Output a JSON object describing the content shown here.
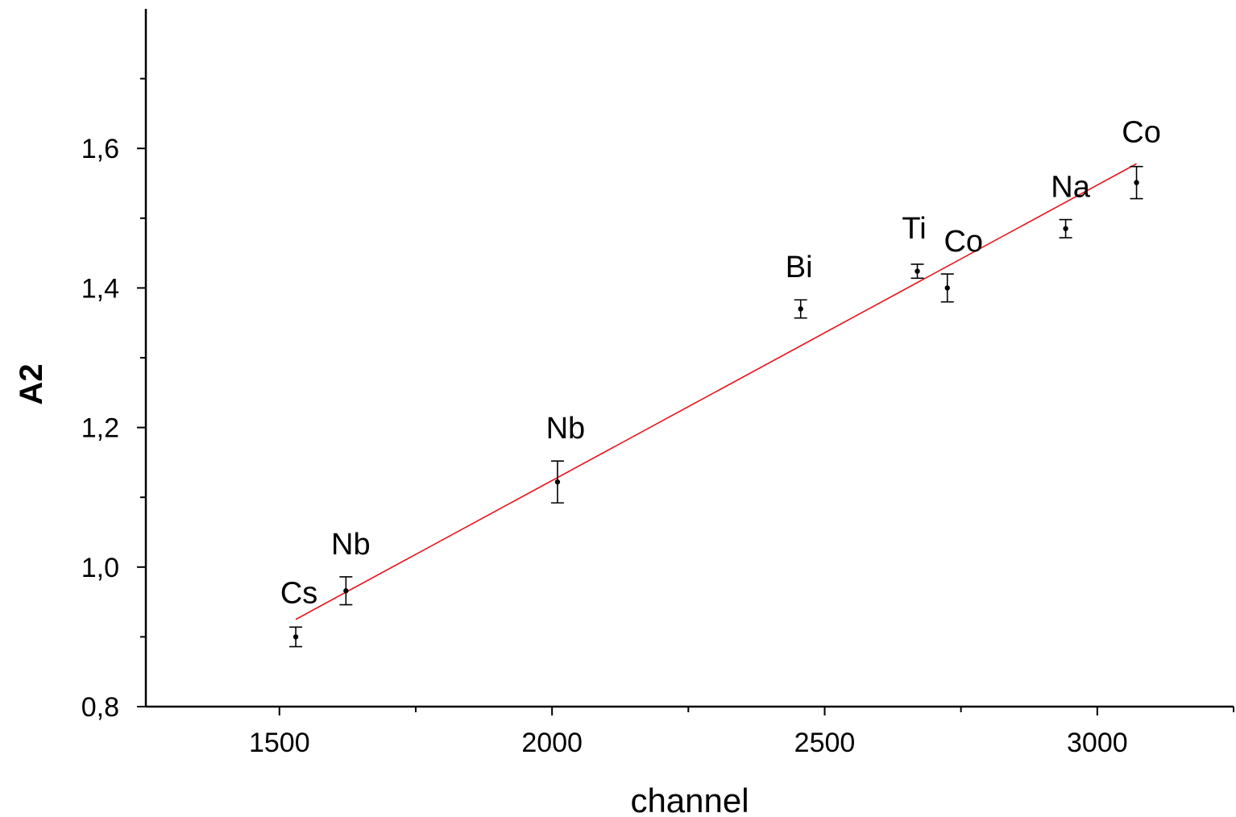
{
  "chart_data": {
    "type": "scatter",
    "xlabel": "channel",
    "ylabel": "A2",
    "xlim": [
      1255,
      3250
    ],
    "ylim": [
      0.8,
      1.8
    ],
    "x_ticks": [
      1500,
      2000,
      2500,
      3000
    ],
    "y_ticks": [
      0.8,
      1.0,
      1.2,
      1.4,
      1.6
    ],
    "x_tick_labels": [
      "1500",
      "2000",
      "2500",
      "3000"
    ],
    "y_tick_labels": [
      "0,8",
      "1,0",
      "1,2",
      "1,4",
      "1,6"
    ],
    "grid": false,
    "legend": "none",
    "series": [
      {
        "points": [
          {
            "label": "Cs",
            "x": 1530,
            "y": 0.9,
            "err": 0.014
          },
          {
            "label": "Nb",
            "x": 1622,
            "y": 0.966,
            "err": 0.02
          },
          {
            "label": "Nb",
            "x": 2010,
            "y": 1.122,
            "err": 0.03
          },
          {
            "label": "Bi",
            "x": 2456,
            "y": 1.37,
            "err": 0.013
          },
          {
            "label": "Ti",
            "x": 2670,
            "y": 1.424,
            "err": 0.01
          },
          {
            "label": "Co",
            "x": 2725,
            "y": 1.4,
            "err": 0.02
          },
          {
            "label": "Na",
            "x": 2942,
            "y": 1.485,
            "err": 0.013
          },
          {
            "label": "Co",
            "x": 3072,
            "y": 1.551,
            "err": 0.023
          }
        ]
      }
    ],
    "fit": {
      "type": "linear",
      "x_range": [
        1530,
        3072
      ],
      "y_range": [
        0.925,
        1.578
      ],
      "color": "#e8141b"
    },
    "colors": {
      "points": "#000000",
      "fit": "#e8141b"
    }
  }
}
